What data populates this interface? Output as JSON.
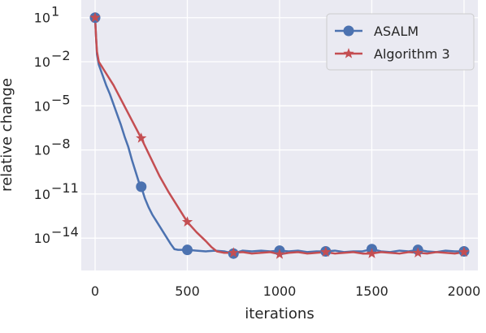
{
  "chart_data": {
    "type": "line",
    "xlabel": "iterations",
    "ylabel": "relative change",
    "y_scale": "log",
    "xlim": [
      -75,
      2075
    ],
    "ylim_exp": [
      -16.2,
      2.2
    ],
    "x_ticks": [
      {
        "value": 0,
        "label": "0"
      },
      {
        "value": 500,
        "label": "500"
      },
      {
        "value": 1000,
        "label": "1000"
      },
      {
        "value": 1500,
        "label": "1500"
      },
      {
        "value": 2000,
        "label": "2000"
      }
    ],
    "y_ticks": [
      {
        "exp": 1,
        "label": "10",
        "sup": "1"
      },
      {
        "exp": -2,
        "label": "10",
        "sup": "−2"
      },
      {
        "exp": -5,
        "label": "10",
        "sup": "−5"
      },
      {
        "exp": -8,
        "label": "10",
        "sup": "−8"
      },
      {
        "exp": -11,
        "label": "10",
        "sup": "−11"
      },
      {
        "exp": -14,
        "label": "10",
        "sup": "−14"
      }
    ],
    "grid": true,
    "legend_position": "top-right",
    "series": [
      {
        "name": "ASALM",
        "color": "#4c72b0",
        "marker": "circle",
        "markers_x": [
          0,
          250,
          500,
          750,
          1000,
          1250,
          1500,
          1750,
          2000
        ],
        "points": [
          [
            0,
            1.0
          ],
          [
            5,
            -0.3
          ],
          [
            10,
            -1.5
          ],
          [
            20,
            -2.2
          ],
          [
            40,
            -2.9
          ],
          [
            60,
            -3.6
          ],
          [
            80,
            -4.2
          ],
          [
            100,
            -4.9
          ],
          [
            120,
            -5.6
          ],
          [
            140,
            -6.3
          ],
          [
            160,
            -7.1
          ],
          [
            180,
            -7.8
          ],
          [
            200,
            -8.7
          ],
          [
            220,
            -9.5
          ],
          [
            240,
            -10.3
          ],
          [
            250,
            -10.5
          ],
          [
            270,
            -11.3
          ],
          [
            290,
            -11.9
          ],
          [
            310,
            -12.4
          ],
          [
            330,
            -12.8
          ],
          [
            350,
            -13.2
          ],
          [
            370,
            -13.6
          ],
          [
            390,
            -14.0
          ],
          [
            410,
            -14.4
          ],
          [
            430,
            -14.75
          ],
          [
            450,
            -14.8
          ],
          [
            500,
            -14.8
          ],
          [
            550,
            -14.85
          ],
          [
            600,
            -14.9
          ],
          [
            650,
            -14.85
          ],
          [
            700,
            -14.9
          ],
          [
            750,
            -15.05
          ],
          [
            800,
            -14.85
          ],
          [
            850,
            -14.9
          ],
          [
            900,
            -14.85
          ],
          [
            950,
            -14.9
          ],
          [
            1000,
            -14.85
          ],
          [
            1050,
            -14.9
          ],
          [
            1100,
            -14.85
          ],
          [
            1150,
            -14.95
          ],
          [
            1200,
            -14.9
          ],
          [
            1250,
            -14.9
          ],
          [
            1300,
            -14.85
          ],
          [
            1350,
            -14.95
          ],
          [
            1400,
            -14.9
          ],
          [
            1450,
            -14.9
          ],
          [
            1500,
            -14.75
          ],
          [
            1550,
            -14.9
          ],
          [
            1600,
            -14.95
          ],
          [
            1650,
            -14.85
          ],
          [
            1700,
            -14.9
          ],
          [
            1750,
            -14.8
          ],
          [
            1800,
            -14.9
          ],
          [
            1850,
            -14.95
          ],
          [
            1900,
            -14.85
          ],
          [
            1950,
            -14.9
          ],
          [
            2000,
            -14.9
          ]
        ]
      },
      {
        "name": "Algorithm 3",
        "color": "#c44e52",
        "marker": "star",
        "markers_x": [
          0,
          250,
          500,
          750,
          1000,
          1250,
          1500,
          1750,
          2000
        ],
        "points": [
          [
            0,
            1.0
          ],
          [
            5,
            -0.3
          ],
          [
            10,
            -1.3
          ],
          [
            20,
            -2.0
          ],
          [
            50,
            -2.6
          ],
          [
            100,
            -3.6
          ],
          [
            150,
            -4.8
          ],
          [
            200,
            -6.0
          ],
          [
            250,
            -7.2
          ],
          [
            300,
            -8.5
          ],
          [
            350,
            -9.8
          ],
          [
            400,
            -10.9
          ],
          [
            450,
            -11.9
          ],
          [
            500,
            -12.9
          ],
          [
            550,
            -13.6
          ],
          [
            600,
            -14.2
          ],
          [
            630,
            -14.6
          ],
          [
            660,
            -14.9
          ],
          [
            700,
            -15.0
          ],
          [
            750,
            -15.0
          ],
          [
            800,
            -14.95
          ],
          [
            850,
            -15.05
          ],
          [
            900,
            -15.0
          ],
          [
            950,
            -14.95
          ],
          [
            1000,
            -15.1
          ],
          [
            1050,
            -15.0
          ],
          [
            1100,
            -14.95
          ],
          [
            1150,
            -15.05
          ],
          [
            1200,
            -15.0
          ],
          [
            1250,
            -14.95
          ],
          [
            1300,
            -15.05
          ],
          [
            1350,
            -15.0
          ],
          [
            1400,
            -14.95
          ],
          [
            1450,
            -15.05
          ],
          [
            1500,
            -15.05
          ],
          [
            1550,
            -14.95
          ],
          [
            1600,
            -15.0
          ],
          [
            1650,
            -15.05
          ],
          [
            1700,
            -14.95
          ],
          [
            1750,
            -15.0
          ],
          [
            1800,
            -15.05
          ],
          [
            1850,
            -14.95
          ],
          [
            1900,
            -15.0
          ],
          [
            1950,
            -15.05
          ],
          [
            2000,
            -14.95
          ]
        ]
      }
    ]
  }
}
